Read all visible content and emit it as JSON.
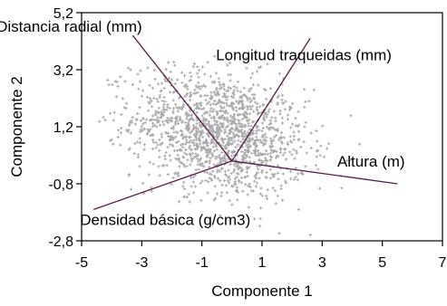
{
  "chart_data": {
    "type": "scatter",
    "title": "",
    "xlabel": "Componente 1",
    "ylabel": "Componente 2",
    "xlim": [
      -5,
      7
    ],
    "ylim": [
      -2.8,
      5.2
    ],
    "xticks": [
      "-5",
      "-3",
      "-1",
      "1",
      "3",
      "5",
      "7"
    ],
    "yticks": [
      "5,2",
      "3,2",
      "1,2",
      "-0,8",
      "-2,8"
    ],
    "grid": false,
    "point_color": "#a9a9a9",
    "vector_color": "#5b1a4a",
    "points_description": "dense cloud of gray plus markers centered near the origin",
    "vectors": [
      {
        "label": "Distancia radial (mm)",
        "x": -3.3,
        "y": 4.4
      },
      {
        "label": "Longitud traqueidas (mm)",
        "x": 2.6,
        "y": 4.3
      },
      {
        "label": "Altura (m)",
        "x": 5.5,
        "y": -0.8
      },
      {
        "label": "Densidad básica (g/cm3)",
        "x": -4.6,
        "y": -1.7
      }
    ]
  }
}
